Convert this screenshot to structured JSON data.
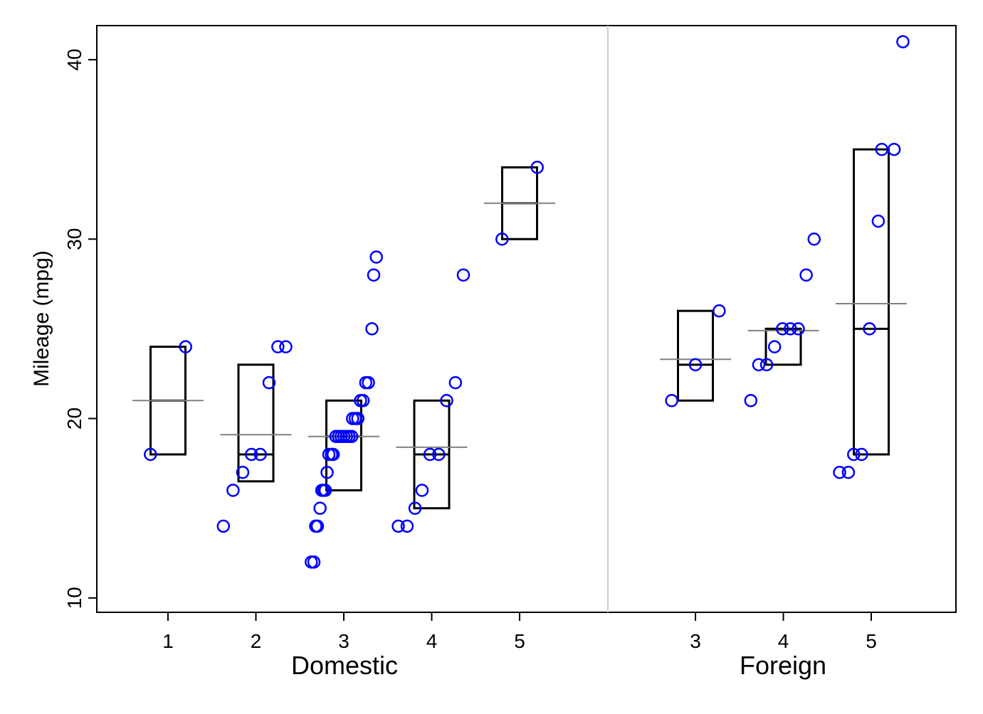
{
  "chart_data": {
    "type": "scatter",
    "ylabel": "Mileage (mpg)",
    "ylim": [
      10,
      40
    ],
    "yticks": [
      10,
      20,
      30,
      40
    ],
    "grid": false,
    "colors": {
      "points": "#0000ff",
      "box": "#000000",
      "mean": "#808080",
      "separator": "#cccccc"
    },
    "groups": [
      {
        "label": "Domestic",
        "categories": [
          {
            "label": "1",
            "box": {
              "q1": 18,
              "median": 21,
              "q3": 24
            },
            "mean": 21,
            "points": [
              {
                "x": 0.8,
                "y": 18
              },
              {
                "x": 1.2,
                "y": 24
              }
            ]
          },
          {
            "label": "2",
            "box": {
              "q1": 16.5,
              "median": 18,
              "q3": 23
            },
            "mean": 19.1,
            "points": [
              {
                "x": 1.63,
                "y": 14
              },
              {
                "x": 1.74,
                "y": 16
              },
              {
                "x": 1.85,
                "y": 17
              },
              {
                "x": 1.95,
                "y": 18
              },
              {
                "x": 2.05,
                "y": 18
              },
              {
                "x": 2.15,
                "y": 22
              },
              {
                "x": 2.25,
                "y": 24
              },
              {
                "x": 2.34,
                "y": 24
              }
            ]
          },
          {
            "label": "3",
            "box": {
              "q1": 16,
              "median": 19,
              "q3": 21
            },
            "mean": 19,
            "points": [
              {
                "x": 2.63,
                "y": 12
              },
              {
                "x": 2.66,
                "y": 12
              },
              {
                "x": 2.68,
                "y": 14
              },
              {
                "x": 2.7,
                "y": 14
              },
              {
                "x": 2.73,
                "y": 15
              },
              {
                "x": 2.75,
                "y": 16
              },
              {
                "x": 2.77,
                "y": 16
              },
              {
                "x": 2.79,
                "y": 16
              },
              {
                "x": 2.81,
                "y": 17
              },
              {
                "x": 2.83,
                "y": 18
              },
              {
                "x": 2.86,
                "y": 18
              },
              {
                "x": 2.88,
                "y": 18
              },
              {
                "x": 2.91,
                "y": 19
              },
              {
                "x": 2.94,
                "y": 19
              },
              {
                "x": 2.97,
                "y": 19
              },
              {
                "x": 3.0,
                "y": 19
              },
              {
                "x": 3.03,
                "y": 19
              },
              {
                "x": 3.06,
                "y": 19
              },
              {
                "x": 3.09,
                "y": 19
              },
              {
                "x": 3.1,
                "y": 20
              },
              {
                "x": 3.13,
                "y": 20
              },
              {
                "x": 3.16,
                "y": 20
              },
              {
                "x": 3.19,
                "y": 21
              },
              {
                "x": 3.22,
                "y": 21
              },
              {
                "x": 3.25,
                "y": 22
              },
              {
                "x": 3.28,
                "y": 22
              },
              {
                "x": 3.32,
                "y": 25
              },
              {
                "x": 3.34,
                "y": 28
              },
              {
                "x": 3.37,
                "y": 29
              }
            ]
          },
          {
            "label": "4",
            "box": {
              "q1": 15,
              "median": 18,
              "q3": 21
            },
            "mean": 18.4,
            "points": [
              {
                "x": 3.62,
                "y": 14
              },
              {
                "x": 3.72,
                "y": 14
              },
              {
                "x": 3.81,
                "y": 15
              },
              {
                "x": 3.89,
                "y": 16
              },
              {
                "x": 3.98,
                "y": 18
              },
              {
                "x": 4.08,
                "y": 18
              },
              {
                "x": 4.17,
                "y": 21
              },
              {
                "x": 4.27,
                "y": 22
              },
              {
                "x": 4.36,
                "y": 28
              }
            ]
          },
          {
            "label": "5",
            "box": {
              "q1": 30,
              "median": 32,
              "q3": 34
            },
            "mean": 32,
            "points": [
              {
                "x": 4.8,
                "y": 30
              },
              {
                "x": 5.2,
                "y": 34
              }
            ]
          }
        ]
      },
      {
        "label": "Foreign",
        "categories": [
          {
            "label": "3",
            "box": {
              "q1": 21,
              "median": 23,
              "q3": 26
            },
            "mean": 23.3,
            "points": [
              {
                "x": 2.73,
                "y": 21
              },
              {
                "x": 3.0,
                "y": 23
              },
              {
                "x": 3.27,
                "y": 26
              }
            ]
          },
          {
            "label": "4",
            "box": {
              "q1": 23,
              "median": 25,
              "q3": 25
            },
            "mean": 24.9,
            "points": [
              {
                "x": 3.63,
                "y": 21
              },
              {
                "x": 3.72,
                "y": 23
              },
              {
                "x": 3.81,
                "y": 23
              },
              {
                "x": 3.9,
                "y": 24
              },
              {
                "x": 3.99,
                "y": 25
              },
              {
                "x": 4.08,
                "y": 25
              },
              {
                "x": 4.17,
                "y": 25
              },
              {
                "x": 4.26,
                "y": 28
              },
              {
                "x": 4.35,
                "y": 30
              }
            ]
          },
          {
            "label": "5",
            "box": {
              "q1": 18,
              "median": 25,
              "q3": 35
            },
            "mean": 26.4,
            "points": [
              {
                "x": 4.64,
                "y": 17
              },
              {
                "x": 4.74,
                "y": 17
              },
              {
                "x": 4.8,
                "y": 18
              },
              {
                "x": 4.89,
                "y": 18
              },
              {
                "x": 4.98,
                "y": 25
              },
              {
                "x": 5.08,
                "y": 31
              },
              {
                "x": 5.12,
                "y": 35
              },
              {
                "x": 5.26,
                "y": 35
              },
              {
                "x": 5.36,
                "y": 41
              }
            ]
          }
        ]
      }
    ]
  }
}
